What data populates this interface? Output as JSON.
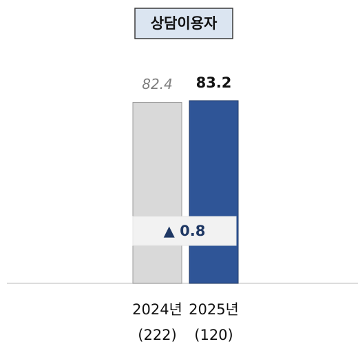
{
  "chart_data": {
    "type": "bar",
    "title": "상담이용자",
    "categories": [
      "2024년",
      "2025년"
    ],
    "counts": [
      "(222)",
      "(120)"
    ],
    "values": [
      82.4,
      83.2
    ],
    "colors": [
      "#d9d9d9",
      "#2f5597"
    ],
    "annotation": "▲ 0.8"
  }
}
